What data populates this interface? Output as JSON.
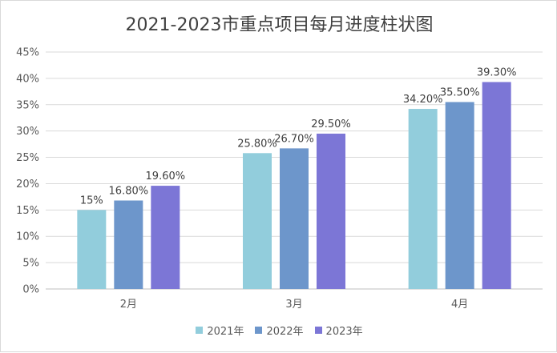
{
  "chart_data": {
    "type": "bar",
    "title": "2021-2023市重点项目每月进度柱状图",
    "categories": [
      "2月",
      "3月",
      "4月"
    ],
    "yticks": [
      "0%",
      "5%",
      "10%",
      "15%",
      "20%",
      "25%",
      "30%",
      "35%",
      "40%",
      "45%"
    ],
    "ylim": [
      0,
      45
    ],
    "grid": true,
    "legend_position": "bottom",
    "series": [
      {
        "name": "2021年",
        "color": "#92cddc",
        "values": [
          15,
          25.8,
          34.2
        ],
        "labels": [
          "15%",
          "25.80%",
          "34.20%"
        ]
      },
      {
        "name": "2022年",
        "color": "#6d96cb",
        "values": [
          16.8,
          26.7,
          35.5
        ],
        "labels": [
          "16.80%",
          "26.70%",
          "35.50%"
        ]
      },
      {
        "name": "2023年",
        "color": "#7c76d6",
        "values": [
          19.6,
          29.5,
          39.3
        ],
        "labels": [
          "19.60%",
          "29.50%",
          "39.30%"
        ]
      }
    ]
  }
}
